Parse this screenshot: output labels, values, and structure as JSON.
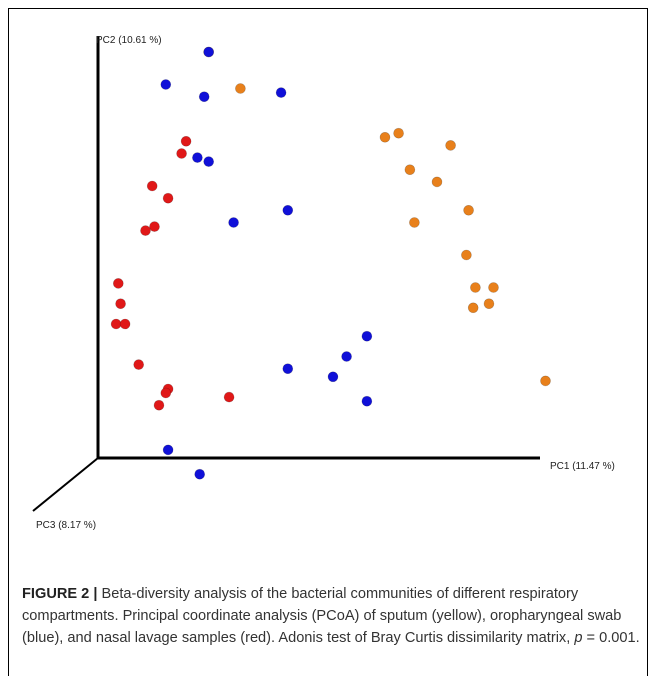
{
  "chart_data": {
    "type": "scatter",
    "projection": "3d",
    "title": "",
    "axes": {
      "x": {
        "label": "PC1 (11.47 %)"
      },
      "y": {
        "label": "PC2 (10.61 %)"
      },
      "z": {
        "label": "PC3 (8.17 %)"
      }
    },
    "grid": false,
    "series": [
      {
        "color": "#e8801b",
        "points": [
          [
            0.49,
            1.0
          ],
          [
            0.63,
            0.91
          ],
          [
            1.27,
            0.79
          ],
          [
            1.33,
            0.8
          ],
          [
            1.56,
            0.77
          ],
          [
            1.38,
            0.71
          ],
          [
            1.5,
            0.68
          ],
          [
            1.4,
            0.58
          ],
          [
            1.64,
            0.61
          ],
          [
            1.63,
            0.5
          ],
          [
            1.67,
            0.42
          ],
          [
            1.75,
            0.42
          ],
          [
            1.73,
            0.38
          ],
          [
            1.66,
            0.37
          ],
          [
            1.98,
            0.19
          ]
        ]
      },
      {
        "color": "#1010d8",
        "points": [
          [
            0.49,
            1.0
          ],
          [
            0.3,
            0.92
          ],
          [
            0.47,
            0.89
          ],
          [
            0.81,
            0.9
          ],
          [
            0.44,
            0.74
          ],
          [
            0.49,
            0.73
          ],
          [
            0.84,
            0.61
          ],
          [
            0.6,
            0.58
          ],
          [
            1.19,
            0.3
          ],
          [
            1.1,
            0.25
          ],
          [
            0.84,
            0.22
          ],
          [
            1.04,
            0.2
          ],
          [
            1.19,
            0.14
          ],
          [
            0.31,
            0.02
          ],
          [
            0.45,
            -0.04
          ]
        ]
      },
      {
        "color": "#e01818",
        "points": [
          [
            0.39,
            0.78
          ],
          [
            0.37,
            0.75
          ],
          [
            0.24,
            0.67
          ],
          [
            0.31,
            0.64
          ],
          [
            0.25,
            0.57
          ],
          [
            0.21,
            0.56
          ],
          [
            0.09,
            0.43
          ],
          [
            0.1,
            0.38
          ],
          [
            0.08,
            0.33
          ],
          [
            0.12,
            0.33
          ],
          [
            0.18,
            0.23
          ],
          [
            0.31,
            0.17
          ],
          [
            0.3,
            0.16
          ],
          [
            0.27,
            0.13
          ],
          [
            0.58,
            0.15
          ]
        ]
      }
    ]
  },
  "caption": {
    "label": "FIGURE 2 |",
    "text": "Beta-diversity analysis of the bacterial communities of different respiratory compartments. Principal coordinate analysis (PCoA) of sputum (yellow), oropharyngeal swab (blue), and nasal lavage samples (red). Adonis test of Bray Curtis dissimilarity matrix, ",
    "p_symbol": "p",
    "p_value": " = 0.001."
  }
}
